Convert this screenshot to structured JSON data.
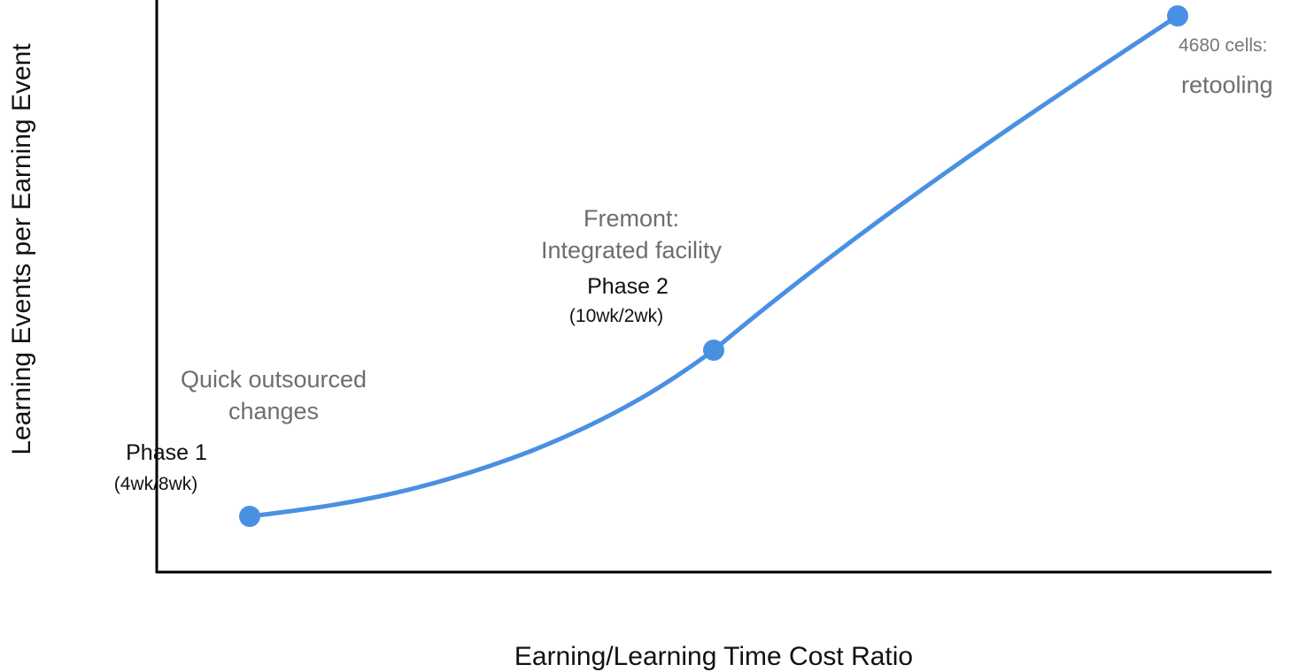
{
  "chart_data": {
    "type": "line",
    "xlabel": "Earning/Learning Time Cost Ratio",
    "ylabel": "Learning Events per Earning Event",
    "grid": false,
    "legend": "none",
    "series_color": "#4a90e2",
    "points": [
      {
        "phase": "Phase 1",
        "ratio": "(4wk/8wk)",
        "note": [
          "Quick outsourced",
          "changes"
        ]
      },
      {
        "phase": "Phase 2",
        "ratio": "(10wk/2wk)",
        "note": [
          "Fremont:",
          "Integrated facility"
        ]
      },
      {
        "phase": "",
        "ratio": "",
        "note": [
          "4680 cells:",
          "retooling"
        ]
      }
    ]
  }
}
